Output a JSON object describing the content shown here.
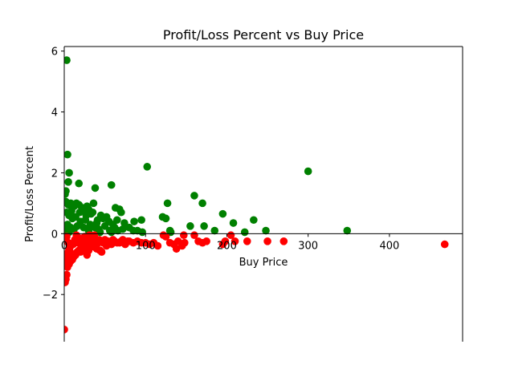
{
  "chart_data": {
    "type": "scatter",
    "title": "Profit/Loss Percent vs Buy Price",
    "xlabel": "Buy Price",
    "ylabel": "Profit/Loss Percent",
    "xlim": [
      0,
      490
    ],
    "ylim": [
      -3.55,
      6.15
    ],
    "xticks": [
      0,
      100,
      200,
      300,
      400
    ],
    "yticks": [
      -2,
      0,
      2,
      4,
      6
    ],
    "grid": false,
    "legend": "none",
    "spines": "centered axes at zero",
    "colors": {
      "profit": "#008000",
      "loss": "#ff0000"
    },
    "series": [
      {
        "key": "profit",
        "color": "#008000",
        "points": [
          [
            3,
            5.7
          ],
          [
            4,
            2.6
          ],
          [
            6,
            2.0
          ],
          [
            5,
            1.7
          ],
          [
            2,
            1.4
          ],
          [
            1,
            1.3
          ],
          [
            18,
            1.65
          ],
          [
            38,
            1.5
          ],
          [
            58,
            1.6
          ],
          [
            102,
            2.2
          ],
          [
            300,
            2.05
          ],
          [
            160,
            1.25
          ],
          [
            348,
            0.1
          ],
          [
            2,
            1.05
          ],
          [
            5,
            0.95
          ],
          [
            8,
            1.0
          ],
          [
            12,
            0.9
          ],
          [
            15,
            1.0
          ],
          [
            18,
            0.95
          ],
          [
            22,
            0.85
          ],
          [
            25,
            0.75
          ],
          [
            28,
            0.9
          ],
          [
            30,
            0.8
          ],
          [
            35,
            0.7
          ],
          [
            36,
            1.0
          ],
          [
            3,
            0.7
          ],
          [
            6,
            0.6
          ],
          [
            10,
            0.5
          ],
          [
            14,
            0.55
          ],
          [
            20,
            0.4
          ],
          [
            26,
            0.45
          ],
          [
            32,
            0.3
          ],
          [
            40,
            0.35
          ],
          [
            45,
            0.6
          ],
          [
            48,
            0.5
          ],
          [
            52,
            0.55
          ],
          [
            55,
            0.4
          ],
          [
            60,
            0.3
          ],
          [
            63,
            0.85
          ],
          [
            68,
            0.8
          ],
          [
            70,
            0.7
          ],
          [
            74,
            0.35
          ],
          [
            86,
            0.4
          ],
          [
            95,
            0.45
          ],
          [
            65,
            0.45
          ],
          [
            72,
            0.15
          ],
          [
            90,
            0.1
          ],
          [
            96,
            0.05
          ],
          [
            121,
            0.55
          ],
          [
            125,
            0.5
          ],
          [
            127,
            1.0
          ],
          [
            130,
            0.1
          ],
          [
            131,
            0.05
          ],
          [
            155,
            0.25
          ],
          [
            170,
            1.0
          ],
          [
            172,
            0.25
          ],
          [
            185,
            0.1
          ],
          [
            195,
            0.65
          ],
          [
            208,
            0.35
          ],
          [
            222,
            0.05
          ],
          [
            233,
            0.45
          ],
          [
            248,
            0.1
          ],
          [
            4,
            0.3
          ],
          [
            8,
            0.2
          ],
          [
            12,
            0.15
          ],
          [
            16,
            0.25
          ],
          [
            24,
            0.2
          ],
          [
            30,
            0.1
          ],
          [
            38,
            0.2
          ],
          [
            42,
            0.15
          ],
          [
            50,
            0.25
          ],
          [
            56,
            0.1
          ],
          [
            62,
            0.2
          ],
          [
            80,
            0.2
          ],
          [
            85,
            0.1
          ],
          [
            2,
            0.1
          ],
          [
            6,
            0.05
          ],
          [
            9,
            0.75
          ],
          [
            19,
            0.7
          ],
          [
            27,
            0.6
          ],
          [
            33,
            0.65
          ],
          [
            41,
            0.45
          ],
          [
            44,
            0.05
          ],
          [
            58,
            0.05
          ],
          [
            66,
            0.1
          ]
        ]
      },
      {
        "key": "loss",
        "color": "#ff0000",
        "points": [
          [
            0,
            -3.15
          ],
          [
            1,
            -1.6
          ],
          [
            2,
            -1.5
          ],
          [
            3,
            -1.35
          ],
          [
            4,
            -1.1
          ],
          [
            6,
            -1.0
          ],
          [
            8,
            -0.9
          ],
          [
            10,
            -0.85
          ],
          [
            12,
            -0.75
          ],
          [
            14,
            -0.7
          ],
          [
            16,
            -0.6
          ],
          [
            18,
            -0.55
          ],
          [
            20,
            -0.6
          ],
          [
            22,
            -0.5
          ],
          [
            24,
            -0.45
          ],
          [
            26,
            -0.5
          ],
          [
            28,
            -0.7
          ],
          [
            30,
            -0.55
          ],
          [
            32,
            -0.45
          ],
          [
            34,
            -0.4
          ],
          [
            36,
            -0.35
          ],
          [
            38,
            -0.45
          ],
          [
            40,
            -0.5
          ],
          [
            42,
            -0.3
          ],
          [
            44,
            -0.55
          ],
          [
            46,
            -0.6
          ],
          [
            48,
            -0.3
          ],
          [
            52,
            -0.4
          ],
          [
            55,
            -0.3
          ],
          [
            58,
            -0.35
          ],
          [
            62,
            -0.25
          ],
          [
            65,
            -0.3
          ],
          [
            70,
            -0.25
          ],
          [
            75,
            -0.35
          ],
          [
            80,
            -0.25
          ],
          [
            85,
            -0.3
          ],
          [
            90,
            -0.25
          ],
          [
            95,
            -0.3
          ],
          [
            100,
            -0.3
          ],
          [
            105,
            -0.35
          ],
          [
            110,
            -0.3
          ],
          [
            115,
            -0.4
          ],
          [
            122,
            -0.05
          ],
          [
            125,
            -0.1
          ],
          [
            130,
            -0.3
          ],
          [
            135,
            -0.35
          ],
          [
            138,
            -0.5
          ],
          [
            140,
            -0.25
          ],
          [
            145,
            -0.4
          ],
          [
            147,
            -0.05
          ],
          [
            148,
            -0.3
          ],
          [
            160,
            -0.05
          ],
          [
            165,
            -0.25
          ],
          [
            170,
            -0.3
          ],
          [
            175,
            -0.25
          ],
          [
            195,
            -0.35
          ],
          [
            198,
            -0.25
          ],
          [
            205,
            -0.05
          ],
          [
            210,
            -0.25
          ],
          [
            225,
            -0.25
          ],
          [
            250,
            -0.25
          ],
          [
            270,
            -0.25
          ],
          [
            468,
            -0.35
          ],
          [
            1,
            -0.2
          ],
          [
            3,
            -0.1
          ],
          [
            5,
            -0.3
          ],
          [
            7,
            -0.45
          ],
          [
            9,
            -0.65
          ],
          [
            11,
            -0.35
          ],
          [
            13,
            -0.2
          ],
          [
            15,
            -0.05
          ],
          [
            17,
            -0.3
          ],
          [
            19,
            -0.15
          ],
          [
            21,
            -0.4
          ],
          [
            23,
            -0.25
          ],
          [
            25,
            -0.1
          ],
          [
            27,
            -0.3
          ],
          [
            29,
            -0.2
          ],
          [
            31,
            -0.05
          ],
          [
            33,
            -0.25
          ],
          [
            35,
            -0.15
          ],
          [
            37,
            -0.05
          ],
          [
            43,
            -0.2
          ],
          [
            47,
            -0.25
          ],
          [
            50,
            -0.2
          ],
          [
            54,
            -0.25
          ],
          [
            60,
            -0.2
          ],
          [
            68,
            -0.3
          ],
          [
            72,
            -0.2
          ],
          [
            78,
            -0.25
          ],
          [
            5,
            -0.6
          ],
          [
            7,
            -0.8
          ],
          [
            2,
            -0.9
          ],
          [
            4,
            -0.7
          ],
          [
            6,
            -0.5
          ]
        ]
      }
    ]
  }
}
